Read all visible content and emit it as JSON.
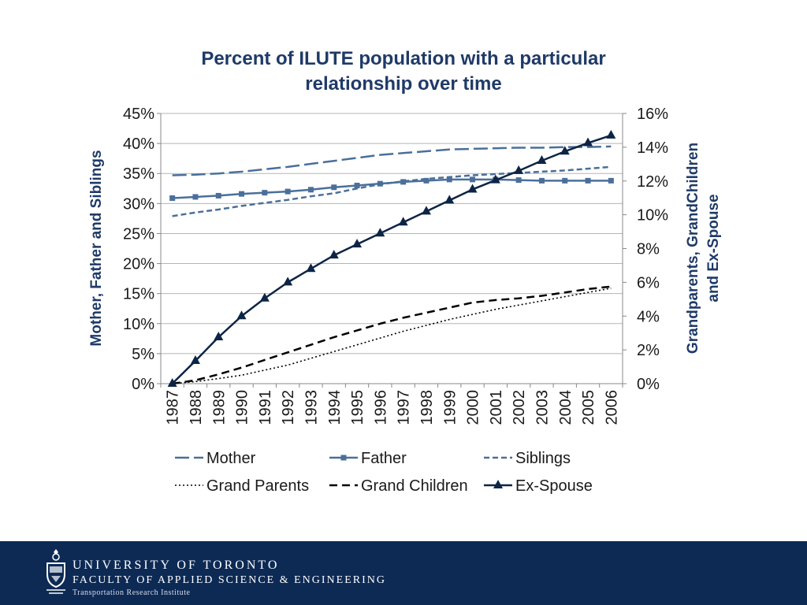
{
  "colors": {
    "mother": "#4a6f9a",
    "father": "#4a6f9a",
    "siblings": "#4a6f9a",
    "grand": "#000000",
    "exspouse": "#0d2445",
    "footer": "#0d2a55"
  },
  "chart_data": {
    "type": "line",
    "title_line1": "Percent of ILUTE population with a particular",
    "title_line2": "relationship over time",
    "ylabel_left": "Mother, Father and Siblings",
    "ylabel_right_line1": "Grandparents, GrandChildren",
    "ylabel_right_line2": "and Ex-Spouse",
    "x": [
      "1987",
      "1988",
      "1989",
      "1990",
      "1991",
      "1992",
      "1993",
      "1994",
      "1995",
      "1996",
      "1997",
      "1998",
      "1999",
      "2000",
      "2001",
      "2002",
      "2003",
      "2004",
      "2005",
      "2006"
    ],
    "ylim_left": [
      0,
      45
    ],
    "ylim_right": [
      0,
      16
    ],
    "yticks_left": [
      "0%",
      "5%",
      "10%",
      "15%",
      "20%",
      "25%",
      "30%",
      "35%",
      "40%",
      "45%"
    ],
    "yticks_right": [
      "0%",
      "2%",
      "4%",
      "6%",
      "8%",
      "10%",
      "12%",
      "14%",
      "16%"
    ],
    "grid": true,
    "legend_position": "bottom",
    "series": [
      {
        "name": "Mother",
        "axis": "left",
        "style": "longdash",
        "values": [
          34.7,
          34.8,
          35.0,
          35.3,
          35.7,
          36.1,
          36.6,
          37.1,
          37.6,
          38.1,
          38.4,
          38.7,
          39.0,
          39.1,
          39.2,
          39.3,
          39.3,
          39.4,
          39.4,
          39.5
        ]
      },
      {
        "name": "Father",
        "axis": "left",
        "style": "square",
        "values": [
          30.9,
          31.1,
          31.3,
          31.6,
          31.8,
          32.0,
          32.3,
          32.7,
          33.0,
          33.3,
          33.6,
          33.8,
          34.0,
          34.0,
          34.0,
          33.9,
          33.8,
          33.8,
          33.8,
          33.8
        ]
      },
      {
        "name": "Siblings",
        "axis": "left",
        "style": "dash",
        "values": [
          27.9,
          28.5,
          29.0,
          29.6,
          30.1,
          30.6,
          31.2,
          31.7,
          32.5,
          33.2,
          33.7,
          34.1,
          34.4,
          34.7,
          34.9,
          35.1,
          35.3,
          35.5,
          35.8,
          36.1
        ]
      },
      {
        "name": "Grand Parents",
        "axis": "right",
        "style": "dot",
        "values": [
          0.0,
          0.12,
          0.3,
          0.5,
          0.8,
          1.1,
          1.5,
          1.9,
          2.3,
          2.7,
          3.1,
          3.45,
          3.8,
          4.1,
          4.4,
          4.65,
          4.9,
          5.15,
          5.4,
          5.65
        ]
      },
      {
        "name": "Grand Children",
        "axis": "right",
        "style": "bolddash",
        "values": [
          0.0,
          0.2,
          0.55,
          0.95,
          1.4,
          1.85,
          2.3,
          2.75,
          3.15,
          3.55,
          3.9,
          4.2,
          4.5,
          4.8,
          4.95,
          5.05,
          5.2,
          5.4,
          5.6,
          5.75
        ]
      },
      {
        "name": "Ex-Spouse",
        "axis": "right",
        "style": "triangle",
        "values": [
          0.0,
          1.35,
          2.75,
          4.0,
          5.05,
          6.0,
          6.8,
          7.6,
          8.25,
          8.9,
          9.55,
          10.2,
          10.85,
          11.5,
          12.05,
          12.6,
          13.2,
          13.75,
          14.25,
          14.7
        ]
      }
    ]
  },
  "footer": {
    "line1": "UNIVERSITY OF TORONTO",
    "line2": "FACULTY OF APPLIED SCIENCE & ENGINEERING",
    "line3": "Transportation Research Institute",
    "crest_icon": "university-crest-icon"
  }
}
